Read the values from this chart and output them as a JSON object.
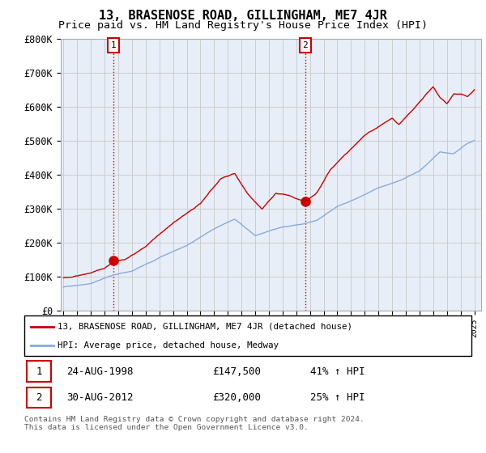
{
  "title": "13, BRASENOSE ROAD, GILLINGHAM, ME7 4JR",
  "subtitle": "Price paid vs. HM Land Registry's House Price Index (HPI)",
  "title_fontsize": 11,
  "subtitle_fontsize": 9.5,
  "ylim": [
    0,
    800000
  ],
  "yticks": [
    0,
    100000,
    200000,
    300000,
    400000,
    500000,
    600000,
    700000,
    800000
  ],
  "ytick_labels": [
    "£0",
    "£100K",
    "£200K",
    "£300K",
    "£400K",
    "£500K",
    "£600K",
    "£700K",
    "£800K"
  ],
  "xlim_start": 1994.8,
  "xlim_end": 2025.5,
  "property_color": "#cc0000",
  "hpi_color": "#88aadd",
  "sale1_year": 1998.65,
  "sale1_price": 147500,
  "sale2_year": 2012.66,
  "sale2_price": 320000,
  "sale1_label": "1",
  "sale2_label": "2",
  "legend_line1": "13, BRASENOSE ROAD, GILLINGHAM, ME7 4JR (detached house)",
  "legend_line2": "HPI: Average price, detached house, Medway",
  "table_row1": [
    "1",
    "24-AUG-1998",
    "£147,500",
    "41% ↑ HPI"
  ],
  "table_row2": [
    "2",
    "30-AUG-2012",
    "£320,000",
    "25% ↑ HPI"
  ],
  "footnote": "Contains HM Land Registry data © Crown copyright and database right 2024.\nThis data is licensed under the Open Government Licence v3.0.",
  "bg_color": "#ffffff",
  "grid_color": "#cccccc",
  "plot_bg_color": "#e8eef8"
}
